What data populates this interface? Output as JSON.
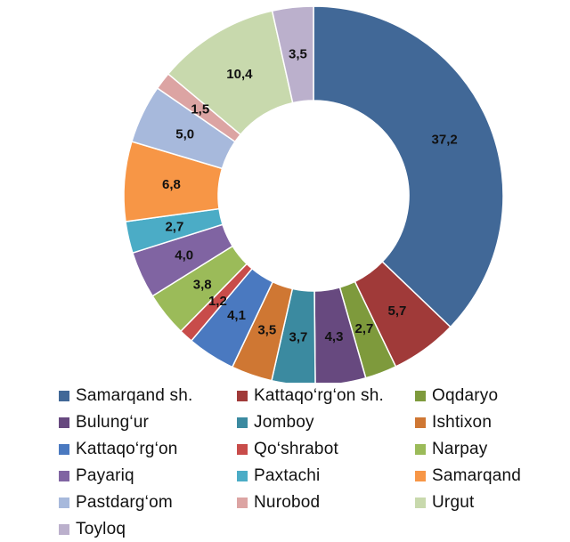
{
  "chart_data": {
    "type": "pie",
    "variant": "donut",
    "title": "",
    "legend_position": "bottom",
    "series": [
      {
        "label": "Samarqand sh.",
        "value": 37.2,
        "display": "37,2",
        "color": "#416897"
      },
      {
        "label": "Kattaqo‘rg‘on sh.",
        "value": 5.7,
        "display": "5,7",
        "color": "#a03a39"
      },
      {
        "label": "Oqdaryo",
        "value": 2.7,
        "display": "2,7",
        "color": "#7e9a3c"
      },
      {
        "label": "Bulung‘ur",
        "value": 4.3,
        "display": "4,3",
        "color": "#67497f"
      },
      {
        "label": "Jomboy",
        "value": 3.7,
        "display": "3,7",
        "color": "#3b8aa0"
      },
      {
        "label": "Ishtixon",
        "value": 3.5,
        "display": "3,5",
        "color": "#cf7733"
      },
      {
        "label": "Kattaqo‘rg‘on",
        "value": 4.1,
        "display": "4,1",
        "color": "#4a79c0"
      },
      {
        "label": "Qo‘shrabot",
        "value": 1.2,
        "display": "1,2",
        "color": "#c84c4a"
      },
      {
        "label": "Narpay",
        "value": 3.8,
        "display": "3,8",
        "color": "#9bbb59"
      },
      {
        "label": "Payariq",
        "value": 4.0,
        "display": "4,0",
        "color": "#8064a2"
      },
      {
        "label": "Paxtachi",
        "value": 2.7,
        "display": "2,7",
        "color": "#4bacc6"
      },
      {
        "label": "Samarqand",
        "value": 6.8,
        "display": "6,8",
        "color": "#f79646"
      },
      {
        "label": "Pastdarg‘om",
        "value": 5.0,
        "display": "5,0",
        "color": "#a7b9dc"
      },
      {
        "label": "Nurobod",
        "value": 1.5,
        "display": "1,5",
        "color": "#dca4a3"
      },
      {
        "label": "Urgut",
        "value": 10.4,
        "display": "10,4",
        "color": "#c8d9ad"
      },
      {
        "label": "Toyloq",
        "value": 3.5,
        "display": "3,5",
        "color": "#bbb0cc"
      }
    ]
  }
}
